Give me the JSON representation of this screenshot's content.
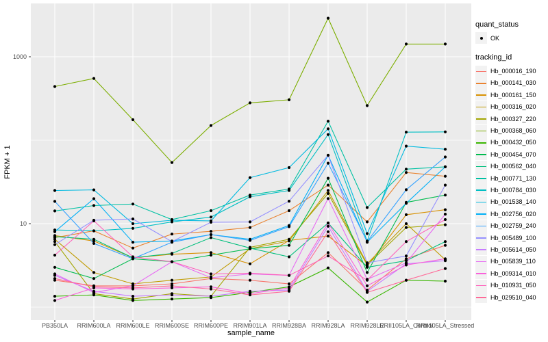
{
  "chart_data": {
    "type": "line",
    "title": "",
    "xlabel": "sample_name",
    "ylabel": "FPKM + 1",
    "y_scale": "log10",
    "ylim": [
      0.7,
      4400
    ],
    "grid": "on",
    "panel_background": "#EBEBEB",
    "gridline_color": "#FFFFFF",
    "point_color": "#000000",
    "y_ticks": [
      {
        "label": "10",
        "value": 10
      },
      {
        "label": "1000",
        "value": 1000
      }
    ],
    "y_minor_gridline_values": [
      1,
      100
    ],
    "categories": [
      "PB350LA",
      "RRIM600LA",
      "RRIM600LE",
      "RRIM600SE",
      "RRIM600PE",
      "RRIM901LA",
      "RRIM928BA",
      "RRIM928LA",
      "RRIM928LE",
      "RRII105LA_Control",
      "RRII105LA_Stressed"
    ],
    "series": [
      {
        "name": "Hb_000016_190",
        "color": "#F8766D",
        "values": [
          2.1,
          1.8,
          1.8,
          1.9,
          2.2,
          2.1,
          1.9,
          4.5,
          1.6,
          3.8,
          5.5
        ]
      },
      {
        "name": "Hb_000141_030",
        "color": "#EA8331",
        "values": [
          6.8,
          8.2,
          5.1,
          7.5,
          8.1,
          9.0,
          14.3,
          29,
          10.5,
          41,
          37
        ]
      },
      {
        "name": "Hb_000161_150",
        "color": "#D89000",
        "values": [
          7.2,
          6.2,
          3.9,
          4.3,
          4.5,
          3.3,
          6.3,
          7.1,
          3.1,
          12.8,
          14.7
        ]
      },
      {
        "name": "Hb_000316_020",
        "color": "#C09B00",
        "values": [
          6.5,
          2.6,
          1.9,
          2.1,
          2.3,
          5.0,
          6.2,
          25,
          3.3,
          10.0,
          3.7
        ]
      },
      {
        "name": "Hb_000327_220",
        "color": "#A3A500",
        "values": [
          6.1,
          1.45,
          1.25,
          1.45,
          1.35,
          5.2,
          6.5,
          23,
          3.2,
          9.0,
          9.7
        ]
      },
      {
        "name": "Hb_000368_060",
        "color": "#7CAE00",
        "values": [
          440,
          550,
          176,
          54,
          150,
          280,
          305,
          2900,
          260,
          1420,
          1420
        ]
      },
      {
        "name": "Hb_000432_050",
        "color": "#39B600",
        "values": [
          1.35,
          1.4,
          1.2,
          1.25,
          1.3,
          1.5,
          1.75,
          2.95,
          1.15,
          2.1,
          2.05
        ]
      },
      {
        "name": "Hb_000454_070",
        "color": "#00BB4E",
        "values": [
          3.0,
          2.2,
          3.8,
          3.5,
          4.2,
          5.0,
          5.5,
          35,
          2.6,
          18,
          22
        ]
      },
      {
        "name": "Hb_000562_040",
        "color": "#00BF7D",
        "values": [
          7.0,
          6.5,
          3.9,
          4.4,
          6.8,
          5.1,
          4.0,
          10.2,
          3.0,
          3.6,
          6.1
        ]
      },
      {
        "name": "Hb_000771_130",
        "color": "#00C1A3",
        "values": [
          14.2,
          16.5,
          17.2,
          11.2,
          14.3,
          22,
          26,
          169,
          15.6,
          45,
          48
        ]
      },
      {
        "name": "Hb_000784_030",
        "color": "#00BFC4",
        "values": [
          8.4,
          8.2,
          8.8,
          10.5,
          12.0,
          21,
          25,
          117,
          6.2,
          125,
          126
        ]
      },
      {
        "name": "Hb_001538_140",
        "color": "#00BAE0",
        "values": [
          25,
          25.4,
          10.0,
          11.0,
          10.8,
          35.6,
          47,
          137,
          7.6,
          85,
          78
        ]
      },
      {
        "name": "Hb_002756_020",
        "color": "#00B0F6",
        "values": [
          8.0,
          19.9,
          6.0,
          6.2,
          7.4,
          6.5,
          9.5,
          66,
          6.0,
          17.5,
          48
        ]
      },
      {
        "name": "Hb_002759_240",
        "color": "#35A2FF",
        "values": [
          18.5,
          5.8,
          3.8,
          6.0,
          7.4,
          6.3,
          9.2,
          53,
          6.1,
          25.5,
          63
        ]
      },
      {
        "name": "Hb_005489_100",
        "color": "#9590FF",
        "values": [
          5.6,
          11.0,
          11.4,
          6.1,
          10.4,
          10.5,
          18.6,
          66,
          3.4,
          4.1,
          29
        ]
      },
      {
        "name": "Hb_005614_050",
        "color": "#C77CFF",
        "values": [
          2.4,
          1.55,
          1.35,
          1.4,
          1.35,
          1.55,
          1.6,
          9.3,
          1.55,
          3.3,
          3.6
        ]
      },
      {
        "name": "Hb_005839_110",
        "color": "#E76BF3",
        "values": [
          2.5,
          1.5,
          1.8,
          3.5,
          2.25,
          2.5,
          2.4,
          20,
          2.15,
          3.4,
          13
        ]
      },
      {
        "name": "Hb_009314_010",
        "color": "#FA62DB",
        "values": [
          1.2,
          1.7,
          1.65,
          1.7,
          1.75,
          1.45,
          1.7,
          10.2,
          1.8,
          3.2,
          3.8
        ]
      },
      {
        "name": "Hb_010931_050",
        "color": "#FF62BC",
        "values": [
          4.2,
          10.8,
          4.0,
          3.5,
          2.5,
          2.55,
          2.4,
          4.1,
          2.1,
          6.1,
          11.2
        ]
      },
      {
        "name": "Hb_029510_040",
        "color": "#FF6A98",
        "values": [
          2.2,
          1.75,
          1.7,
          1.8,
          1.65,
          1.4,
          1.55,
          8.0,
          1.5,
          2.1,
          2.9
        ]
      }
    ],
    "legend_position": "right"
  },
  "legend": {
    "quant_status": {
      "title": "quant_status",
      "items": [
        {
          "label": "OK",
          "marker": "black-point"
        }
      ]
    },
    "tracking_id": {
      "title": "tracking_id"
    }
  }
}
